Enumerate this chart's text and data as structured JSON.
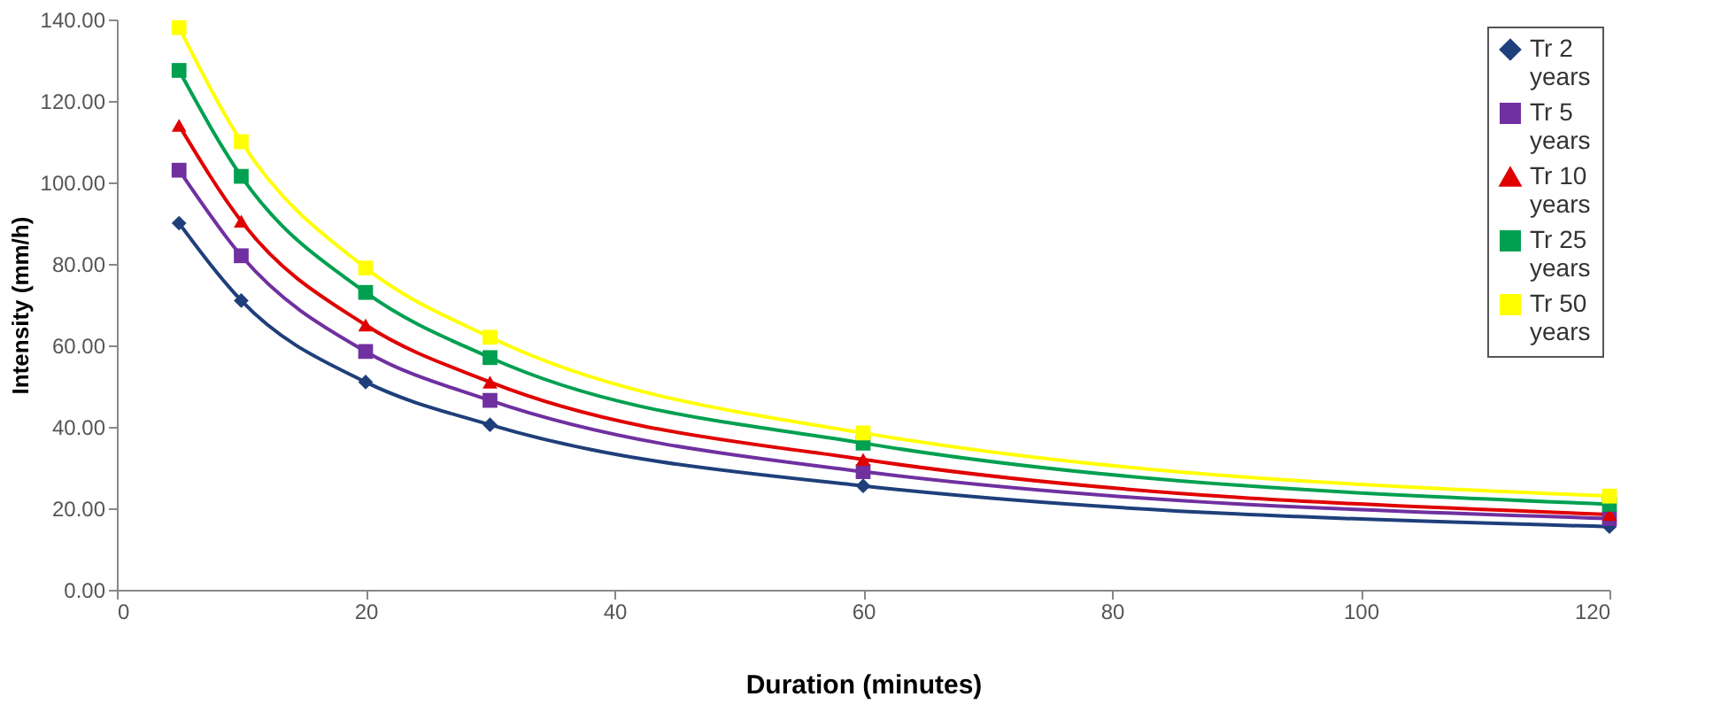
{
  "chart_data": {
    "type": "line",
    "xlabel": "Duration (minutes)",
    "ylabel": "Intensity (mm/h)",
    "x": [
      5,
      10,
      20,
      30,
      60,
      120
    ],
    "series": [
      {
        "name": "Tr 2 years",
        "color": "#1f3f7a",
        "marker": "diamond",
        "values": [
          90,
          71,
          51,
          40.5,
          25.5,
          15.5
        ]
      },
      {
        "name": "Tr 5 years",
        "color": "#7030a0",
        "marker": "square",
        "values": [
          103,
          82,
          58.5,
          46.5,
          29,
          17.5
        ]
      },
      {
        "name": "Tr 10 years",
        "color": "#e00000",
        "marker": "triangle",
        "values": [
          114,
          90.5,
          65,
          51,
          32,
          18.5
        ]
      },
      {
        "name": "Tr 25 years",
        "color": "#00a050",
        "marker": "square",
        "values": [
          127.5,
          101.5,
          73,
          57,
          36,
          21
        ]
      },
      {
        "name": "Tr 50 years",
        "color": "#ffff00",
        "marker": "square",
        "values": [
          138,
          110,
          79,
          62,
          38.5,
          23
        ]
      }
    ],
    "xlim": [
      0,
      120
    ],
    "xticks": [
      0,
      20,
      40,
      60,
      80,
      100,
      120
    ],
    "ylim": [
      0,
      140
    ],
    "yticks": [
      {
        "value": 0,
        "label": "0.00"
      },
      {
        "value": 20,
        "label": "20.00"
      },
      {
        "value": 40,
        "label": "40.00"
      },
      {
        "value": 60,
        "label": "60.00"
      },
      {
        "value": 80,
        "label": "80.00"
      },
      {
        "value": 100,
        "label": "100.00"
      },
      {
        "value": 120,
        "label": "120.00"
      },
      {
        "value": 140,
        "label": "140.00"
      }
    ],
    "grid": false,
    "legend": "top right",
    "line_style": "solid"
  }
}
